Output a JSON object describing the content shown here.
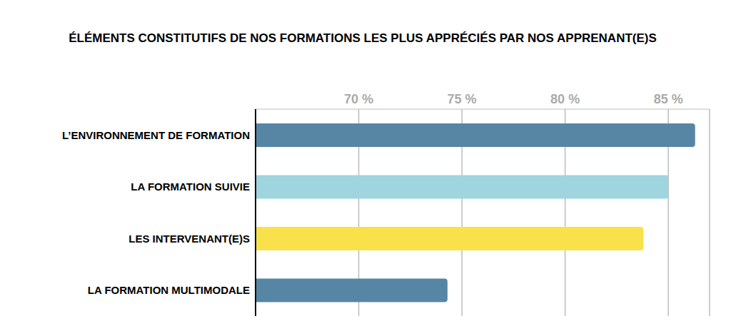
{
  "chart_data": {
    "type": "bar",
    "title": "ÉLÉMENTS CONSTITUTIFS DE NOS FORMATIONS LES PLUS APPRÉCIÉS PAR NOS APPRENANT(E)S",
    "orientation": "horizontal",
    "categories": [
      "L’ENVIRONNEMENT DE FORMATION",
      "LA FORMATION SUIVIE",
      "LES INTERVENANT(E)S",
      "LA FORMATION MULTIMODALE"
    ],
    "values": [
      86.3,
      85.0,
      83.8,
      74.3
    ],
    "colors": [
      "#5786a5",
      "#9fd5de",
      "#f9e14b",
      "#5786a5"
    ],
    "xlim": [
      65,
      87
    ],
    "xticks": [
      {
        "value": 70,
        "label": "70 %"
      },
      {
        "value": 75,
        "label": "75 %"
      },
      {
        "value": 80,
        "label": "80 %"
      },
      {
        "value": 85,
        "label": "85 %"
      }
    ],
    "grid": true
  }
}
